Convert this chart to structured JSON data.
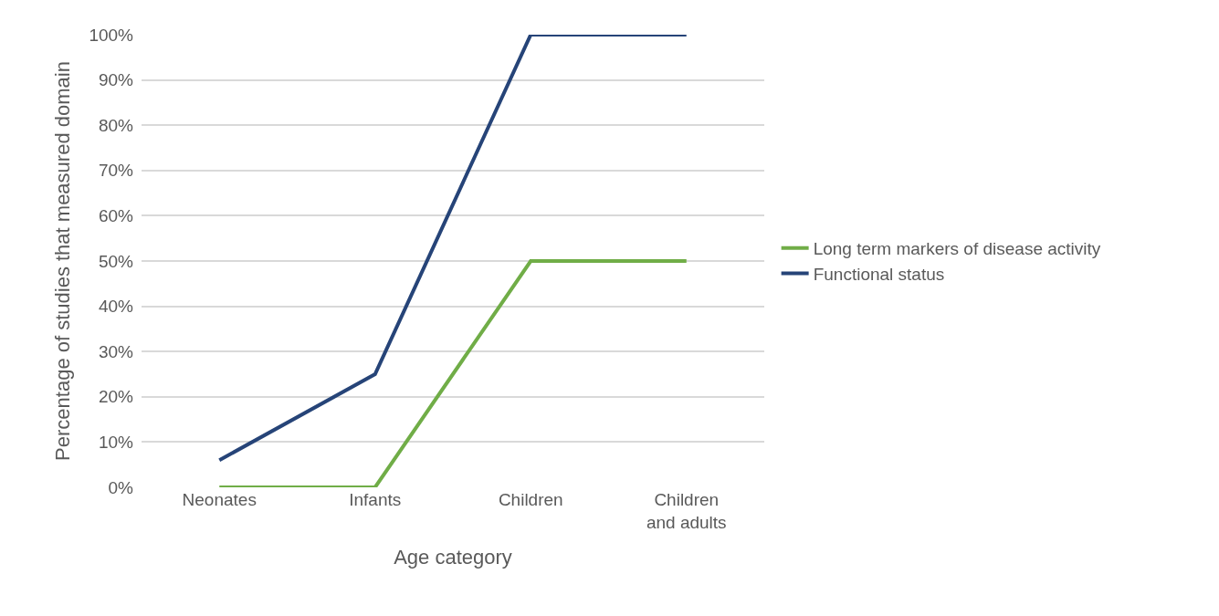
{
  "chart_data": {
    "type": "line",
    "xlabel": "Age category",
    "ylabel": "Percentage of studies that measured domain",
    "categories": [
      "Neonates",
      "Infants",
      "Children",
      "Children and adults"
    ],
    "series": [
      {
        "name": "Long term markers of disease activity",
        "color": "#70ad47",
        "values": [
          0,
          0,
          50,
          50
        ]
      },
      {
        "name": "Functional status",
        "color": "#264478",
        "values": [
          6,
          25,
          100,
          100
        ]
      }
    ],
    "ylim": [
      0,
      100
    ],
    "yticks": [
      {
        "value": 0,
        "label": "0%"
      },
      {
        "value": 10,
        "label": "10%"
      },
      {
        "value": 20,
        "label": "20%"
      },
      {
        "value": 30,
        "label": "30%"
      },
      {
        "value": 40,
        "label": "40%"
      },
      {
        "value": 50,
        "label": "50%"
      },
      {
        "value": 60,
        "label": "60%"
      },
      {
        "value": 70,
        "label": "70%"
      },
      {
        "value": 80,
        "label": "80%"
      },
      {
        "value": 90,
        "label": "90%"
      },
      {
        "value": 100,
        "label": "100%"
      }
    ],
    "grid": "y",
    "legend": "right",
    "marker": "none",
    "line_style": "solid"
  }
}
